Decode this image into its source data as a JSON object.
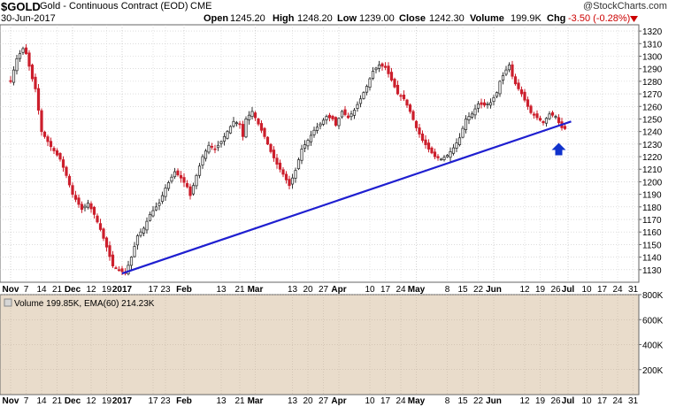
{
  "header": {
    "symbol": "$GOLD",
    "name": "Gold - Continuous Contract (EOD)",
    "exchange": "CME",
    "date": "30-Jun-2017",
    "brand": "@StockCharts.com",
    "open_label": "Open",
    "open_value": "1245.20",
    "high_label": "High",
    "high_value": "1248.20",
    "low_label": "Low",
    "low_value": "1239.00",
    "close_label": "Close",
    "close_value": "1242.30",
    "volume_label": "Volume",
    "volume_value": "199.9K",
    "chg_label": "Chg",
    "chg_value": "-3.50 (-0.28%)",
    "chg_icon": "triangle-down-icon"
  },
  "volume_legend": "Volume 199.85K, EMA(60) 214.23K",
  "colors": {
    "up": "#333333",
    "down": "#cc1f2c",
    "trendline": "#1f1fd0",
    "arrow": "#1032cc",
    "volume_bg": "#e9dccb",
    "grid": "#c8c8c8",
    "chg": "#cc0000"
  },
  "chart_data": [
    {
      "type": "candlestick",
      "title": "$GOLD Gold - Continuous Contract (EOD) CME",
      "ylim": [
        1120,
        1325
      ],
      "y_ticks": [
        1130,
        1140,
        1150,
        1160,
        1170,
        1180,
        1190,
        1200,
        1210,
        1220,
        1230,
        1240,
        1250,
        1260,
        1270,
        1280,
        1290,
        1300,
        1310,
        1320
      ],
      "x_tick_labels": [
        "Nov",
        "7",
        "14",
        "21",
        "Dec",
        "12",
        "19",
        "2017",
        "17",
        "23",
        "Feb",
        "13",
        "21",
        "Mar",
        "13",
        "20",
        "27",
        "Apr",
        "10",
        "17",
        "24",
        "May",
        "8",
        "15",
        "22",
        "Jun",
        "12",
        "19",
        "26",
        "Jul",
        "10",
        "17",
        "24",
        "31"
      ],
      "x_tick_index": [
        0,
        5,
        10,
        15,
        20,
        26,
        31,
        36,
        46,
        50,
        56,
        68,
        74,
        79,
        91,
        96,
        101,
        106,
        116,
        121,
        126,
        131,
        141,
        146,
        151,
        156,
        166,
        171,
        176,
        180,
        186,
        191,
        196,
        201
      ],
      "bold_ticks": [
        "Nov",
        "Dec",
        "2017",
        "Feb",
        "Mar",
        "Apr",
        "May",
        "Jun",
        "Jul"
      ],
      "close_path": [
        [
          0,
          1280
        ],
        [
          2,
          1298
        ],
        [
          4,
          1306
        ],
        [
          5,
          1302
        ],
        [
          7,
          1282
        ],
        [
          8,
          1274
        ],
        [
          10,
          1240
        ],
        [
          13,
          1228
        ],
        [
          16,
          1218
        ],
        [
          18,
          1205
        ],
        [
          20,
          1190
        ],
        [
          23,
          1178
        ],
        [
          25,
          1183
        ],
        [
          27,
          1174
        ],
        [
          29,
          1162
        ],
        [
          31,
          1148
        ],
        [
          33,
          1133
        ],
        [
          35,
          1130
        ],
        [
          37,
          1127
        ],
        [
          39,
          1140
        ],
        [
          41,
          1157
        ],
        [
          43,
          1163
        ],
        [
          45,
          1174
        ],
        [
          48,
          1183
        ],
        [
          50,
          1195
        ],
        [
          53,
          1208
        ],
        [
          55,
          1203
        ],
        [
          57,
          1196
        ],
        [
          58,
          1189
        ],
        [
          60,
          1205
        ],
        [
          62,
          1220
        ],
        [
          64,
          1229
        ],
        [
          66,
          1226
        ],
        [
          68,
          1232
        ],
        [
          70,
          1240
        ],
        [
          72,
          1248
        ],
        [
          74,
          1246
        ],
        [
          75,
          1236
        ],
        [
          76,
          1250
        ],
        [
          78,
          1256
        ],
        [
          80,
          1246
        ],
        [
          82,
          1236
        ],
        [
          84,
          1224
        ],
        [
          86,
          1214
        ],
        [
          88,
          1206
        ],
        [
          90,
          1197
        ],
        [
          92,
          1209
        ],
        [
          94,
          1226
        ],
        [
          96,
          1233
        ],
        [
          98,
          1241
        ],
        [
          100,
          1246
        ],
        [
          102,
          1252
        ],
        [
          104,
          1250
        ],
        [
          105,
          1245
        ],
        [
          107,
          1256
        ],
        [
          109,
          1251
        ],
        [
          111,
          1257
        ],
        [
          113,
          1266
        ],
        [
          115,
          1276
        ],
        [
          117,
          1288
        ],
        [
          119,
          1293
        ],
        [
          121,
          1291
        ],
        [
          123,
          1281
        ],
        [
          125,
          1270
        ],
        [
          127,
          1266
        ],
        [
          129,
          1256
        ],
        [
          131,
          1243
        ],
        [
          133,
          1233
        ],
        [
          135,
          1226
        ],
        [
          137,
          1220
        ],
        [
          139,
          1218
        ],
        [
          141,
          1221
        ],
        [
          143,
          1227
        ],
        [
          145,
          1235
        ],
        [
          147,
          1250
        ],
        [
          149,
          1254
        ],
        [
          151,
          1262
        ],
        [
          153,
          1261
        ],
        [
          155,
          1263
        ],
        [
          157,
          1271
        ],
        [
          158,
          1280
        ],
        [
          160,
          1289
        ],
        [
          161,
          1293
        ],
        [
          162,
          1284
        ],
        [
          163,
          1278
        ],
        [
          165,
          1270
        ],
        [
          166,
          1265
        ],
        [
          168,
          1255
        ],
        [
          170,
          1251
        ],
        [
          172,
          1247
        ],
        [
          174,
          1254
        ],
        [
          176,
          1252
        ],
        [
          177,
          1247
        ],
        [
          178,
          1243
        ],
        [
          179,
          1242.3
        ]
      ],
      "annotations": [
        {
          "type": "trendline",
          "x1": 36,
          "y1": 1127,
          "x2": 181,
          "y2": 1248
        },
        {
          "type": "arrow-up",
          "x": 177,
          "y": 1226
        }
      ]
    },
    {
      "type": "bar",
      "title": "Volume 199.85K, EMA(60) 214.23K",
      "ylim": [
        0,
        800000
      ],
      "y_tick_values": [
        200000,
        400000,
        600000,
        800000
      ],
      "y_tick_labels": [
        "200K",
        "400K",
        "600K",
        "800K"
      ],
      "x_tick_labels": [
        "Nov",
        "7",
        "14",
        "21",
        "Dec",
        "12",
        "19",
        "2017",
        "17",
        "23",
        "Feb",
        "13",
        "21",
        "Mar",
        "13",
        "20",
        "27",
        "Apr",
        "10",
        "17",
        "24",
        "May",
        "8",
        "15",
        "22",
        "Jun",
        "12",
        "19",
        "26",
        "Jul",
        "10",
        "17",
        "24",
        "31"
      ],
      "values": []
    }
  ]
}
